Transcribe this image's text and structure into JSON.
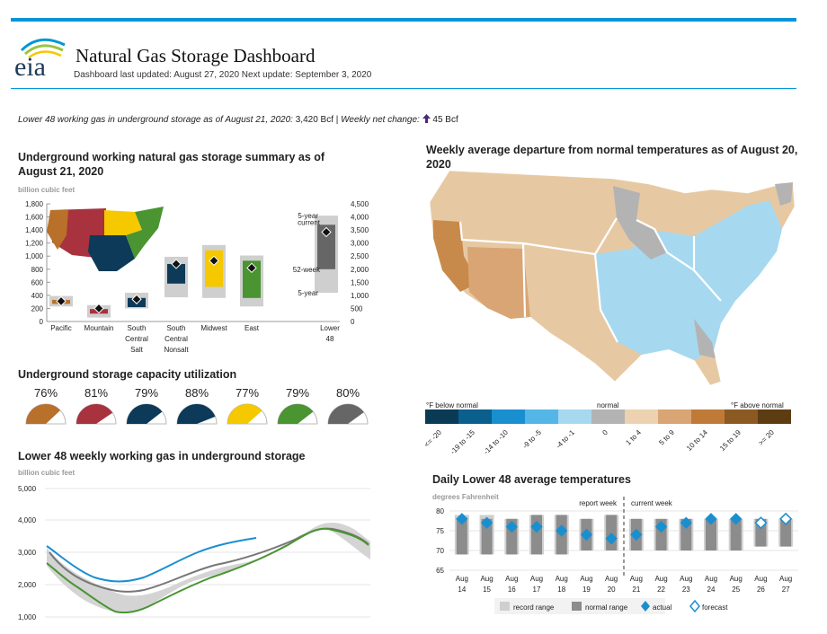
{
  "header": {
    "logo_text": "eia",
    "title": "Natural Gas Storage Dashboard",
    "updated": "Dashboard last updated: August 27, 2020 Next update: September 3, 2020"
  },
  "summary": {
    "label": "Lower 48 working gas in underground storage as of August 21, 2020:",
    "value": "3,420 Bcf",
    "sep": "|",
    "change_label": "Weekly net change:",
    "change_value": "45 Bcf",
    "change_direction": "up"
  },
  "storage_summary": {
    "title": "Underground working natural gas storage summary as of August 21, 2020",
    "unit": "billion cubic feet",
    "left_axis": [
      "1,800",
      "1,600",
      "1,400",
      "1,200",
      "1,000",
      "800",
      "600",
      "400",
      "200",
      "0"
    ],
    "right_axis": [
      "4,500",
      "4,000",
      "3,500",
      "3,000",
      "2,500",
      "2,000",
      "1,500",
      "1,000",
      "500",
      "0"
    ],
    "regions": [
      {
        "name": "Pacific",
        "line2": "",
        "line3": "",
        "color": "#b8702a",
        "min": 230,
        "max": 390,
        "inner_min": 270,
        "inner_max": 330,
        "current": 310
      },
      {
        "name": "Mountain",
        "line2": "",
        "line3": "",
        "color": "#a8323e",
        "min": 60,
        "max": 250,
        "inner_min": 120,
        "inner_max": 190,
        "current": 200
      },
      {
        "name": "South",
        "line2": "Central",
        "line3": "Salt",
        "color": "#0c3a58",
        "min": 200,
        "max": 440,
        "inner_min": 220,
        "inner_max": 360,
        "current": 340
      },
      {
        "name": "South",
        "line2": "Central",
        "line3": "Nonsalt",
        "color": "#0c3a58",
        "min": 370,
        "max": 990,
        "inner_min": 580,
        "inner_max": 880,
        "current": 880
      },
      {
        "name": "Midwest",
        "line2": "",
        "line3": "",
        "color": "#f5c800",
        "min": 360,
        "max": 1170,
        "inner_min": 530,
        "inner_max": 1090,
        "current": 930
      },
      {
        "name": "East",
        "line2": "",
        "line3": "",
        "color": "#4a9431",
        "min": 230,
        "max": 1010,
        "inner_min": 360,
        "inner_max": 930,
        "current": 820
      },
      {
        "name": "Lower",
        "line2": "48",
        "line3": "",
        "color": "#666666",
        "min": 1100,
        "max": 4050,
        "inner_min": 2000,
        "inner_max": 3700,
        "current": 3420
      }
    ],
    "lower48_labels": {
      "five_year_top": "5-year",
      "current": "current",
      "fiftytwo_top": "52-week",
      "fiftytwo_bottom": "52-week",
      "five_year_bottom": "5-year"
    }
  },
  "utilization": {
    "title": "Underground storage capacity utilization",
    "gauges": [
      {
        "pct": "76%",
        "value": 76,
        "color": "#b8702a"
      },
      {
        "pct": "81%",
        "value": 81,
        "color": "#a8323e"
      },
      {
        "pct": "79%",
        "value": 79,
        "color": "#0c3a58"
      },
      {
        "pct": "88%",
        "value": 88,
        "color": "#0c3a58"
      },
      {
        "pct": "77%",
        "value": 77,
        "color": "#f5c800"
      },
      {
        "pct": "79%",
        "value": 79,
        "color": "#4a9431"
      },
      {
        "pct": "80%",
        "value": 80,
        "color": "#666666"
      }
    ]
  },
  "weekly_storage": {
    "title": "Lower 48 weekly working gas in underground storage",
    "unit": "billion cubic feet",
    "y_ticks": [
      "5,000",
      "4,000",
      "3,000",
      "2,000",
      "1,000"
    ]
  },
  "temp_map": {
    "title": "Weekly average departure from normal temperatures as of August 20, 2020",
    "below_label": "°F below normal",
    "normal_label": "normal",
    "above_label": "°F above normal",
    "scale": [
      {
        "label": "<= -20",
        "color": "#0b3a55"
      },
      {
        "label": "-19 to -15",
        "color": "#0a5f8c"
      },
      {
        "label": "-14 to -10",
        "color": "#1a8fd0"
      },
      {
        "label": "-9 to -5",
        "color": "#54b6e6"
      },
      {
        "label": "-4 to -1",
        "color": "#a6d8f0"
      },
      {
        "label": "0",
        "color": "#b3b3b3"
      },
      {
        "label": "1 to 4",
        "color": "#ecd2b0"
      },
      {
        "label": "5 to 9",
        "color": "#d9a574"
      },
      {
        "label": "10 to 14",
        "color": "#c07a38"
      },
      {
        "label": "15 to 19",
        "color": "#8b5a22"
      },
      {
        "label": ">= 20",
        "color": "#5e3c12"
      }
    ]
  },
  "daily_temps": {
    "title": "Daily Lower 48 average temperatures",
    "unit": "degrees Fahrenheit",
    "report_week": "report week",
    "current_week": "current week",
    "y_ticks": [
      "80",
      "75",
      "70",
      "65"
    ],
    "days": [
      {
        "m": "Aug",
        "d": "14",
        "actual": 78,
        "type": "actual",
        "nlo": 69,
        "nhi": 78,
        "rlo": 69,
        "rhi": 79
      },
      {
        "m": "Aug",
        "d": "15",
        "actual": 77,
        "type": "actual",
        "nlo": 69,
        "nhi": 78,
        "rlo": 69,
        "rhi": 79
      },
      {
        "m": "Aug",
        "d": "16",
        "actual": 76,
        "type": "actual",
        "nlo": 69,
        "nhi": 78,
        "rlo": 69,
        "rhi": 78
      },
      {
        "m": "Aug",
        "d": "17",
        "actual": 76,
        "type": "actual",
        "nlo": 69,
        "nhi": 79,
        "rlo": 69,
        "rhi": 79
      },
      {
        "m": "Aug",
        "d": "18",
        "actual": 75,
        "type": "actual",
        "nlo": 69,
        "nhi": 79,
        "rlo": 69,
        "rhi": 79
      },
      {
        "m": "Aug",
        "d": "19",
        "actual": 74,
        "type": "actual",
        "nlo": 70,
        "nhi": 78,
        "rlo": 70,
        "rhi": 78
      },
      {
        "m": "Aug",
        "d": "20",
        "actual": 73,
        "type": "actual",
        "nlo": 70,
        "nhi": 79,
        "rlo": 70,
        "rhi": 79
      },
      {
        "m": "Aug",
        "d": "21",
        "actual": 74,
        "type": "actual",
        "nlo": 70,
        "nhi": 78,
        "rlo": 70,
        "rhi": 78
      },
      {
        "m": "Aug",
        "d": "22",
        "actual": 76,
        "type": "actual",
        "nlo": 70,
        "nhi": 78,
        "rlo": 70,
        "rhi": 78
      },
      {
        "m": "Aug",
        "d": "23",
        "actual": 77,
        "type": "actual",
        "nlo": 70,
        "nhi": 78,
        "rlo": 70,
        "rhi": 78
      },
      {
        "m": "Aug",
        "d": "24",
        "actual": 78,
        "type": "actual",
        "nlo": 70,
        "nhi": 78,
        "rlo": 70,
        "rhi": 78
      },
      {
        "m": "Aug",
        "d": "25",
        "actual": 78,
        "type": "actual",
        "nlo": 70,
        "nhi": 78,
        "rlo": 70,
        "rhi": 78
      },
      {
        "m": "Aug",
        "d": "26",
        "actual": 77,
        "type": "forecast",
        "nlo": 71,
        "nhi": 78,
        "rlo": 71,
        "rhi": 78
      },
      {
        "m": "Aug",
        "d": "27",
        "actual": 78,
        "type": "forecast",
        "nlo": 71,
        "nhi": 78,
        "rlo": 71,
        "rhi": 78
      }
    ],
    "legend": {
      "record": "record range",
      "normal": "normal range",
      "actual": "actual",
      "forecast": "forecast"
    }
  }
}
